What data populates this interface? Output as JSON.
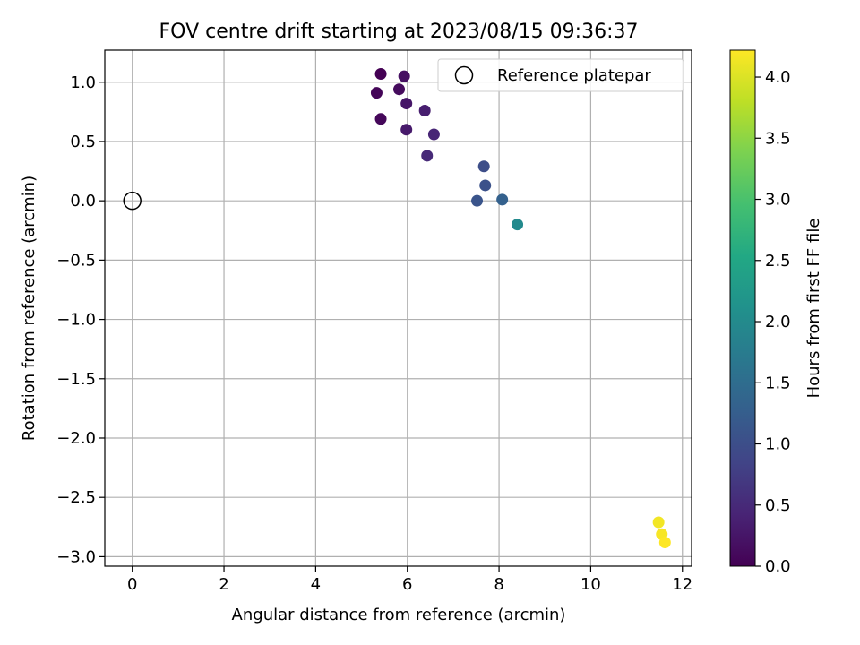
{
  "chart_data": {
    "type": "scatter",
    "title": "FOV centre drift starting at 2023/08/15 09:36:37",
    "xlabel": "Angular distance from reference (arcmin)",
    "ylabel": "Rotation from reference (arcmin)",
    "xlim": [
      -0.6,
      12.2
    ],
    "ylim": [
      -3.08,
      1.27
    ],
    "xticks": [
      0,
      2,
      4,
      6,
      8,
      10,
      12
    ],
    "yticks": [
      -3.0,
      -2.5,
      -2.0,
      -1.5,
      -1.0,
      -0.5,
      0.0,
      0.5,
      1.0
    ],
    "xtick_labels": [
      "0",
      "2",
      "4",
      "6",
      "8",
      "10",
      "12"
    ],
    "ytick_labels": [
      "−3.0",
      "−2.5",
      "−2.0",
      "−1.5",
      "−1.0",
      "−0.5",
      "0.0",
      "0.5",
      "1.0"
    ],
    "grid": true,
    "legend": {
      "position": "top-right",
      "label": "Reference platepar"
    },
    "reference_point": {
      "x": 0,
      "y": 0
    },
    "colorbar": {
      "label": "Hours from first FF file",
      "colormap": "viridis",
      "range": [
        0,
        4.22
      ],
      "ticks": [
        0.0,
        0.5,
        1.0,
        1.5,
        2.0,
        2.5,
        3.0,
        3.5,
        4.0
      ],
      "tick_labels": [
        "0.0",
        "0.5",
        "1.0",
        "1.5",
        "2.0",
        "2.5",
        "3.0",
        "3.5",
        "4.0"
      ]
    },
    "points": [
      {
        "x": 5.42,
        "y": 1.07,
        "hours": 0.0
      },
      {
        "x": 5.33,
        "y": 0.91,
        "hours": 0.05
      },
      {
        "x": 5.42,
        "y": 0.69,
        "hours": 0.08
      },
      {
        "x": 5.82,
        "y": 0.94,
        "hours": 0.12
      },
      {
        "x": 5.93,
        "y": 1.05,
        "hours": 0.18
      },
      {
        "x": 5.98,
        "y": 0.82,
        "hours": 0.25
      },
      {
        "x": 5.98,
        "y": 0.6,
        "hours": 0.3
      },
      {
        "x": 6.38,
        "y": 0.76,
        "hours": 0.35
      },
      {
        "x": 6.58,
        "y": 0.56,
        "hours": 0.45
      },
      {
        "x": 6.43,
        "y": 0.38,
        "hours": 0.5
      },
      {
        "x": 7.67,
        "y": 0.29,
        "hours": 1.0
      },
      {
        "x": 7.7,
        "y": 0.13,
        "hours": 1.05
      },
      {
        "x": 7.52,
        "y": 0.0,
        "hours": 1.1
      },
      {
        "x": 8.07,
        "y": 0.01,
        "hours": 1.3
      },
      {
        "x": 8.4,
        "y": -0.2,
        "hours": 2.0
      },
      {
        "x": 11.48,
        "y": -2.71,
        "hours": 4.15
      },
      {
        "x": 11.55,
        "y": -2.81,
        "hours": 4.18
      },
      {
        "x": 11.62,
        "y": -2.88,
        "hours": 4.22
      }
    ]
  }
}
